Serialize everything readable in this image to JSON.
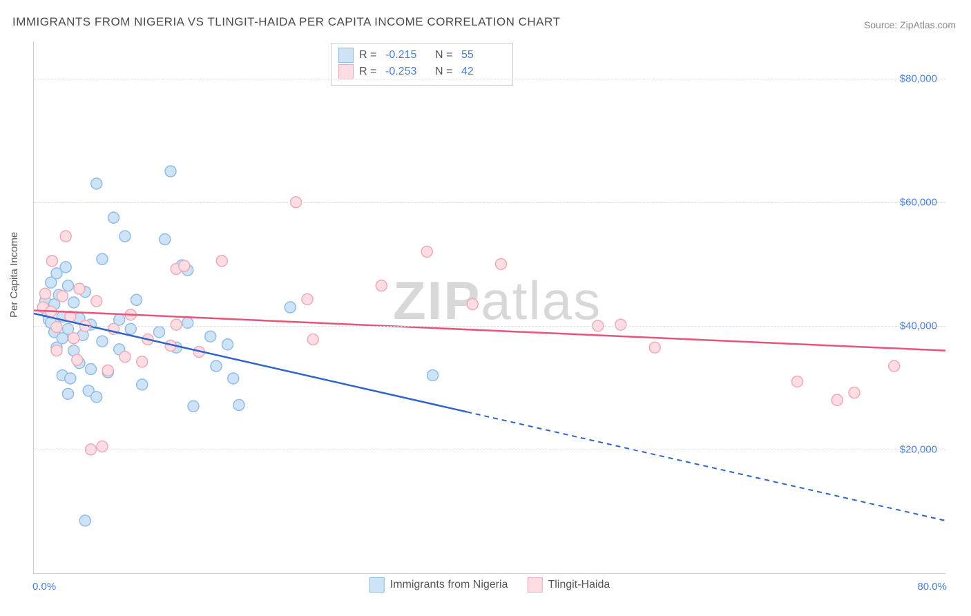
{
  "title": "IMMIGRANTS FROM NIGERIA VS TLINGIT-HAIDA PER CAPITA INCOME CORRELATION CHART",
  "source": "Source: ZipAtlas.com",
  "ylabel": "Per Capita Income",
  "watermark_zip": "ZIP",
  "watermark_rest": "atlas",
  "chart": {
    "type": "scatter-with-trend",
    "x": {
      "min": 0.0,
      "max": 80.0,
      "tick_min_label": "0.0%",
      "tick_max_label": "80.0%"
    },
    "y": {
      "min": 0,
      "max": 86000,
      "ticks": [
        20000,
        40000,
        60000,
        80000
      ],
      "tick_labels": [
        "$20,000",
        "$40,000",
        "$60,000",
        "$80,000"
      ]
    },
    "grid_color": "#dddddd",
    "axis_color": "#cccccc",
    "background": "#ffffff",
    "series": [
      {
        "id": "nigeria",
        "label": "Immigrants from Nigeria",
        "marker_fill": "#cfe3f7",
        "marker_stroke": "#8fbce8",
        "marker_r": 8,
        "trend_color": "#2f63c9",
        "trend_solid_until_x": 38.0,
        "trend_y_start": 42000,
        "trend_y_end": 8500,
        "R": "-0.215",
        "N": "55",
        "points": [
          [
            1.0,
            44000
          ],
          [
            1.2,
            42000
          ],
          [
            1.3,
            41000
          ],
          [
            1.5,
            47000
          ],
          [
            1.5,
            40500
          ],
          [
            1.8,
            39000
          ],
          [
            1.8,
            43500
          ],
          [
            2.0,
            48500
          ],
          [
            2.0,
            36500
          ],
          [
            2.2,
            45000
          ],
          [
            2.5,
            38000
          ],
          [
            2.5,
            41500
          ],
          [
            2.8,
            49500
          ],
          [
            2.5,
            32000
          ],
          [
            3.0,
            46500
          ],
          [
            3.0,
            39500
          ],
          [
            3.0,
            29000
          ],
          [
            3.5,
            43800
          ],
          [
            3.5,
            36000
          ],
          [
            3.2,
            31500
          ],
          [
            4.0,
            41200
          ],
          [
            4.0,
            34000
          ],
          [
            4.3,
            38500
          ],
          [
            4.5,
            45500
          ],
          [
            4.8,
            29500
          ],
          [
            5.0,
            40200
          ],
          [
            5.0,
            33000
          ],
          [
            5.5,
            63000
          ],
          [
            5.5,
            28500
          ],
          [
            6.0,
            50800
          ],
          [
            6.0,
            37500
          ],
          [
            4.5,
            8500
          ],
          [
            6.5,
            32500
          ],
          [
            7.0,
            57500
          ],
          [
            7.5,
            41000
          ],
          [
            7.5,
            36200
          ],
          [
            8.0,
            54500
          ],
          [
            8.5,
            39500
          ],
          [
            9.0,
            44200
          ],
          [
            9.5,
            30500
          ],
          [
            11.0,
            39000
          ],
          [
            11.5,
            54000
          ],
          [
            12.0,
            65000
          ],
          [
            12.5,
            36500
          ],
          [
            13.0,
            49800
          ],
          [
            13.5,
            40500
          ],
          [
            13.5,
            49000
          ],
          [
            14.0,
            27000
          ],
          [
            15.5,
            38300
          ],
          [
            16.0,
            33500
          ],
          [
            17.0,
            37000
          ],
          [
            17.5,
            31500
          ],
          [
            18.0,
            27200
          ],
          [
            22.5,
            43000
          ],
          [
            35.0,
            32000
          ]
        ]
      },
      {
        "id": "tlingit",
        "label": "Tlingit-Haida",
        "marker_fill": "#fbdde3",
        "marker_stroke": "#f1a9b7",
        "marker_r": 8,
        "trend_color": "#e8537a",
        "trend_solid_until_x": 80.0,
        "trend_y_start": 42500,
        "trend_y_end": 36000,
        "R": "-0.253",
        "N": "42",
        "points": [
          [
            0.8,
            43000
          ],
          [
            1.0,
            45200
          ],
          [
            1.5,
            42300
          ],
          [
            1.6,
            50500
          ],
          [
            2.0,
            39800
          ],
          [
            2.0,
            36000
          ],
          [
            2.5,
            44800
          ],
          [
            2.8,
            54500
          ],
          [
            3.2,
            41500
          ],
          [
            3.5,
            38000
          ],
          [
            3.8,
            34500
          ],
          [
            4.0,
            46000
          ],
          [
            4.5,
            40000
          ],
          [
            5.0,
            20000
          ],
          [
            5.5,
            44000
          ],
          [
            6.0,
            20500
          ],
          [
            6.5,
            32800
          ],
          [
            7.0,
            39500
          ],
          [
            8.0,
            35000
          ],
          [
            8.5,
            41800
          ],
          [
            9.5,
            34200
          ],
          [
            10.0,
            37800
          ],
          [
            12.0,
            36800
          ],
          [
            12.5,
            40200
          ],
          [
            12.5,
            49200
          ],
          [
            13.2,
            49700
          ],
          [
            14.5,
            35800
          ],
          [
            16.5,
            50500
          ],
          [
            23.0,
            60000
          ],
          [
            24.0,
            44300
          ],
          [
            24.5,
            37800
          ],
          [
            30.5,
            46500
          ],
          [
            34.5,
            52000
          ],
          [
            38.5,
            43500
          ],
          [
            41.0,
            50000
          ],
          [
            49.5,
            40000
          ],
          [
            51.5,
            40200
          ],
          [
            54.5,
            36500
          ],
          [
            67.0,
            31000
          ],
          [
            70.5,
            28000
          ],
          [
            72.0,
            29200
          ],
          [
            75.5,
            33500
          ]
        ]
      }
    ]
  },
  "legend_top": {
    "R_label": "R =",
    "N_label": "N ="
  }
}
